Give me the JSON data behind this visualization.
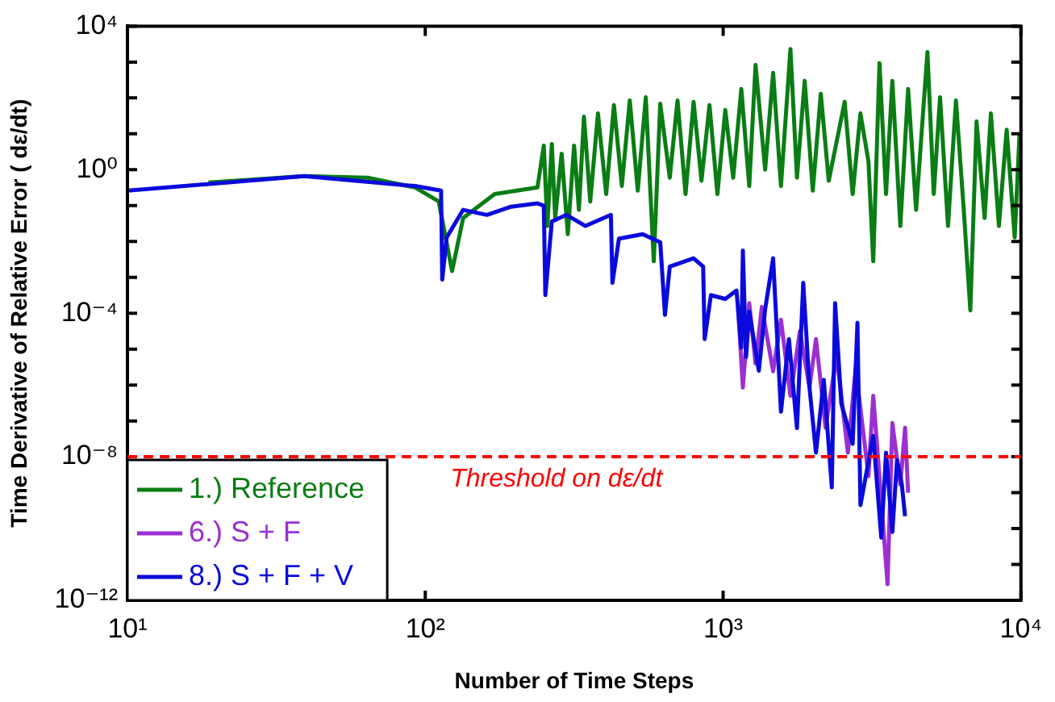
{
  "chart_data": {
    "type": "line",
    "xlabel": "Number of Time Steps",
    "ylabel": "Time Derivative of Relative Error ( dε/dt)",
    "log": "xy",
    "xlim": [
      10,
      10000
    ],
    "ylim": [
      1e-12,
      10000
    ],
    "xticks": [
      {
        "value": 10,
        "label": "10¹"
      },
      {
        "value": 100,
        "label": "10²"
      },
      {
        "value": 1000,
        "label": "10³"
      },
      {
        "value": 10000,
        "label": "10⁴"
      }
    ],
    "yticks": [
      {
        "value": 1e-12,
        "label": "10⁻¹²"
      },
      {
        "value": 1e-11,
        "label": null
      },
      {
        "value": 1e-10,
        "label": null
      },
      {
        "value": 1e-09,
        "label": null
      },
      {
        "value": 1e-08,
        "label": "10⁻⁸"
      },
      {
        "value": 1e-07,
        "label": null
      },
      {
        "value": 1e-06,
        "label": null
      },
      {
        "value": 1e-05,
        "label": null
      },
      {
        "value": 0.0001,
        "label": "10⁻⁴"
      },
      {
        "value": 0.001,
        "label": null
      },
      {
        "value": 0.01,
        "label": null
      },
      {
        "value": 0.1,
        "label": null
      },
      {
        "value": 1,
        "label": "10⁰"
      },
      {
        "value": 10,
        "label": null
      },
      {
        "value": 100,
        "label": null
      },
      {
        "value": 1000,
        "label": null
      },
      {
        "value": 10000,
        "label": "10⁴"
      }
    ],
    "legend": "bottom left",
    "line_style": "solid",
    "ref_lines": [
      {
        "axis": "y",
        "value": 1e-08,
        "label": "Threshold on dε/dt",
        "color": "#ff0000",
        "line_style": "dashed"
      }
    ],
    "series": [
      {
        "name": "1.) Reference",
        "color": "#0a7d14",
        "x": [
          18.7,
          39.2,
          64,
          92.5,
          111,
          123,
          134,
          171,
          238,
          250,
          257,
          266,
          273,
          287,
          301,
          316,
          328,
          341,
          358,
          380,
          405,
          430,
          457,
          486,
          517,
          550,
          585,
          615,
          662,
          703,
          748,
          796,
          846,
          900,
          957,
          1017,
          1081,
          1151,
          1224,
          1285,
          1384,
          1472,
          1564,
          1683,
          1770,
          1879,
          2000,
          2128,
          2263,
          2559,
          2723,
          2891,
          3076,
          3192,
          3350,
          3524,
          3700,
          3936,
          4180,
          4446,
          4853,
          5096,
          5350,
          5690,
          6050,
          6427,
          6761,
          7096,
          7551,
          7925,
          8433,
          8954,
          9528,
          9890
        ],
        "values": [
          0.44,
          0.66,
          0.6,
          0.32,
          0.13,
          0.0015,
          0.045,
          0.21,
          0.32,
          4.7,
          0.027,
          5.2,
          0.045,
          2.8,
          0.016,
          4.7,
          0.076,
          30,
          0.13,
          37,
          0.21,
          63,
          0.35,
          85,
          0.26,
          105,
          0.0028,
          69,
          0.6,
          85,
          0.21,
          78,
          0.49,
          63,
          0.21,
          46,
          0.6,
          178,
          0.35,
          830,
          1,
          500,
          0.35,
          2300,
          0.6,
          300,
          0.26,
          130,
          0.49,
          78,
          0.21,
          37,
          1.7,
          0.0028,
          930,
          0.21,
          300,
          0.027,
          178,
          0.076,
          1900,
          0.21,
          105,
          0.027,
          85,
          0.076,
          0.00012,
          22,
          0.045,
          37,
          0.027,
          13,
          0.013,
          9.8
        ]
      },
      {
        "name": "6.) S + F",
        "color": "#9b30d0",
        "x": [
          1122,
          1165,
          1224,
          1285,
          1349,
          1472,
          1564,
          1683,
          1811,
          1950,
          2050,
          2208,
          2405,
          2624,
          2786,
          3076,
          3192,
          3396,
          3565,
          3700,
          3936,
          4083,
          4180
        ],
        "values": [
          0.00015,
          8.5e-07,
          0.00019,
          4e-06,
          0.00015,
          2.4e-06,
          6.6e-05,
          5e-07,
          3.2e-05,
          8.5e-07,
          1.9e-05,
          6.5e-08,
          6.8e-06,
          1.3e-08,
          3e-06,
          2.9e-09,
          5e-07,
          6.2e-10,
          2.8e-12,
          8.7e-08,
          1.7e-09,
          6.5e-08,
          1e-09
        ]
      },
      {
        "name": "8.) S + F + V",
        "color": "#0a0adc",
        "x": [
          10,
          39.2,
          92.5,
          113,
          114,
          118,
          134,
          161,
          194,
          238,
          250,
          253,
          266,
          298,
          345,
          420,
          425,
          447,
          537,
          615,
          638,
          662,
          796,
          857,
          867,
          910,
          1017,
          1109,
          1151,
          1165,
          1194,
          1224,
          1318,
          1384,
          1472,
          1564,
          1663,
          1770,
          1858,
          1950,
          2050,
          2178,
          2317,
          2377,
          2494,
          2723,
          2825,
          2891,
          3192,
          3396,
          3524,
          3700,
          3837,
          3981,
          4083
        ],
        "values": [
          0.26,
          0.66,
          0.35,
          0.26,
          0.00087,
          0.013,
          0.076,
          0.055,
          0.093,
          0.115,
          0.1,
          0.00032,
          0.036,
          0.055,
          0.027,
          0.055,
          0.0007,
          0.012,
          0.016,
          0.0095,
          9e-05,
          0.002,
          0.0034,
          0.002,
          1.9e-05,
          0.00032,
          0.00025,
          0.00043,
          1.1e-05,
          0.0056,
          6e-06,
          0.00011,
          2.5e-06,
          0.00013,
          0.0034,
          1.8e-07,
          1.9e-05,
          6.3e-08,
          0.0007,
          8.5e-07,
          1.3e-08,
          1.4e-06,
          1.4e-09,
          0.00019,
          3e-07,
          2.3e-08,
          5.4e-05,
          4.5e-10,
          3.8e-08,
          5.6e-11,
          1.3e-08,
          8e-11,
          8.1e-09,
          1.7e-09,
          2.2e-10
        ]
      }
    ]
  }
}
